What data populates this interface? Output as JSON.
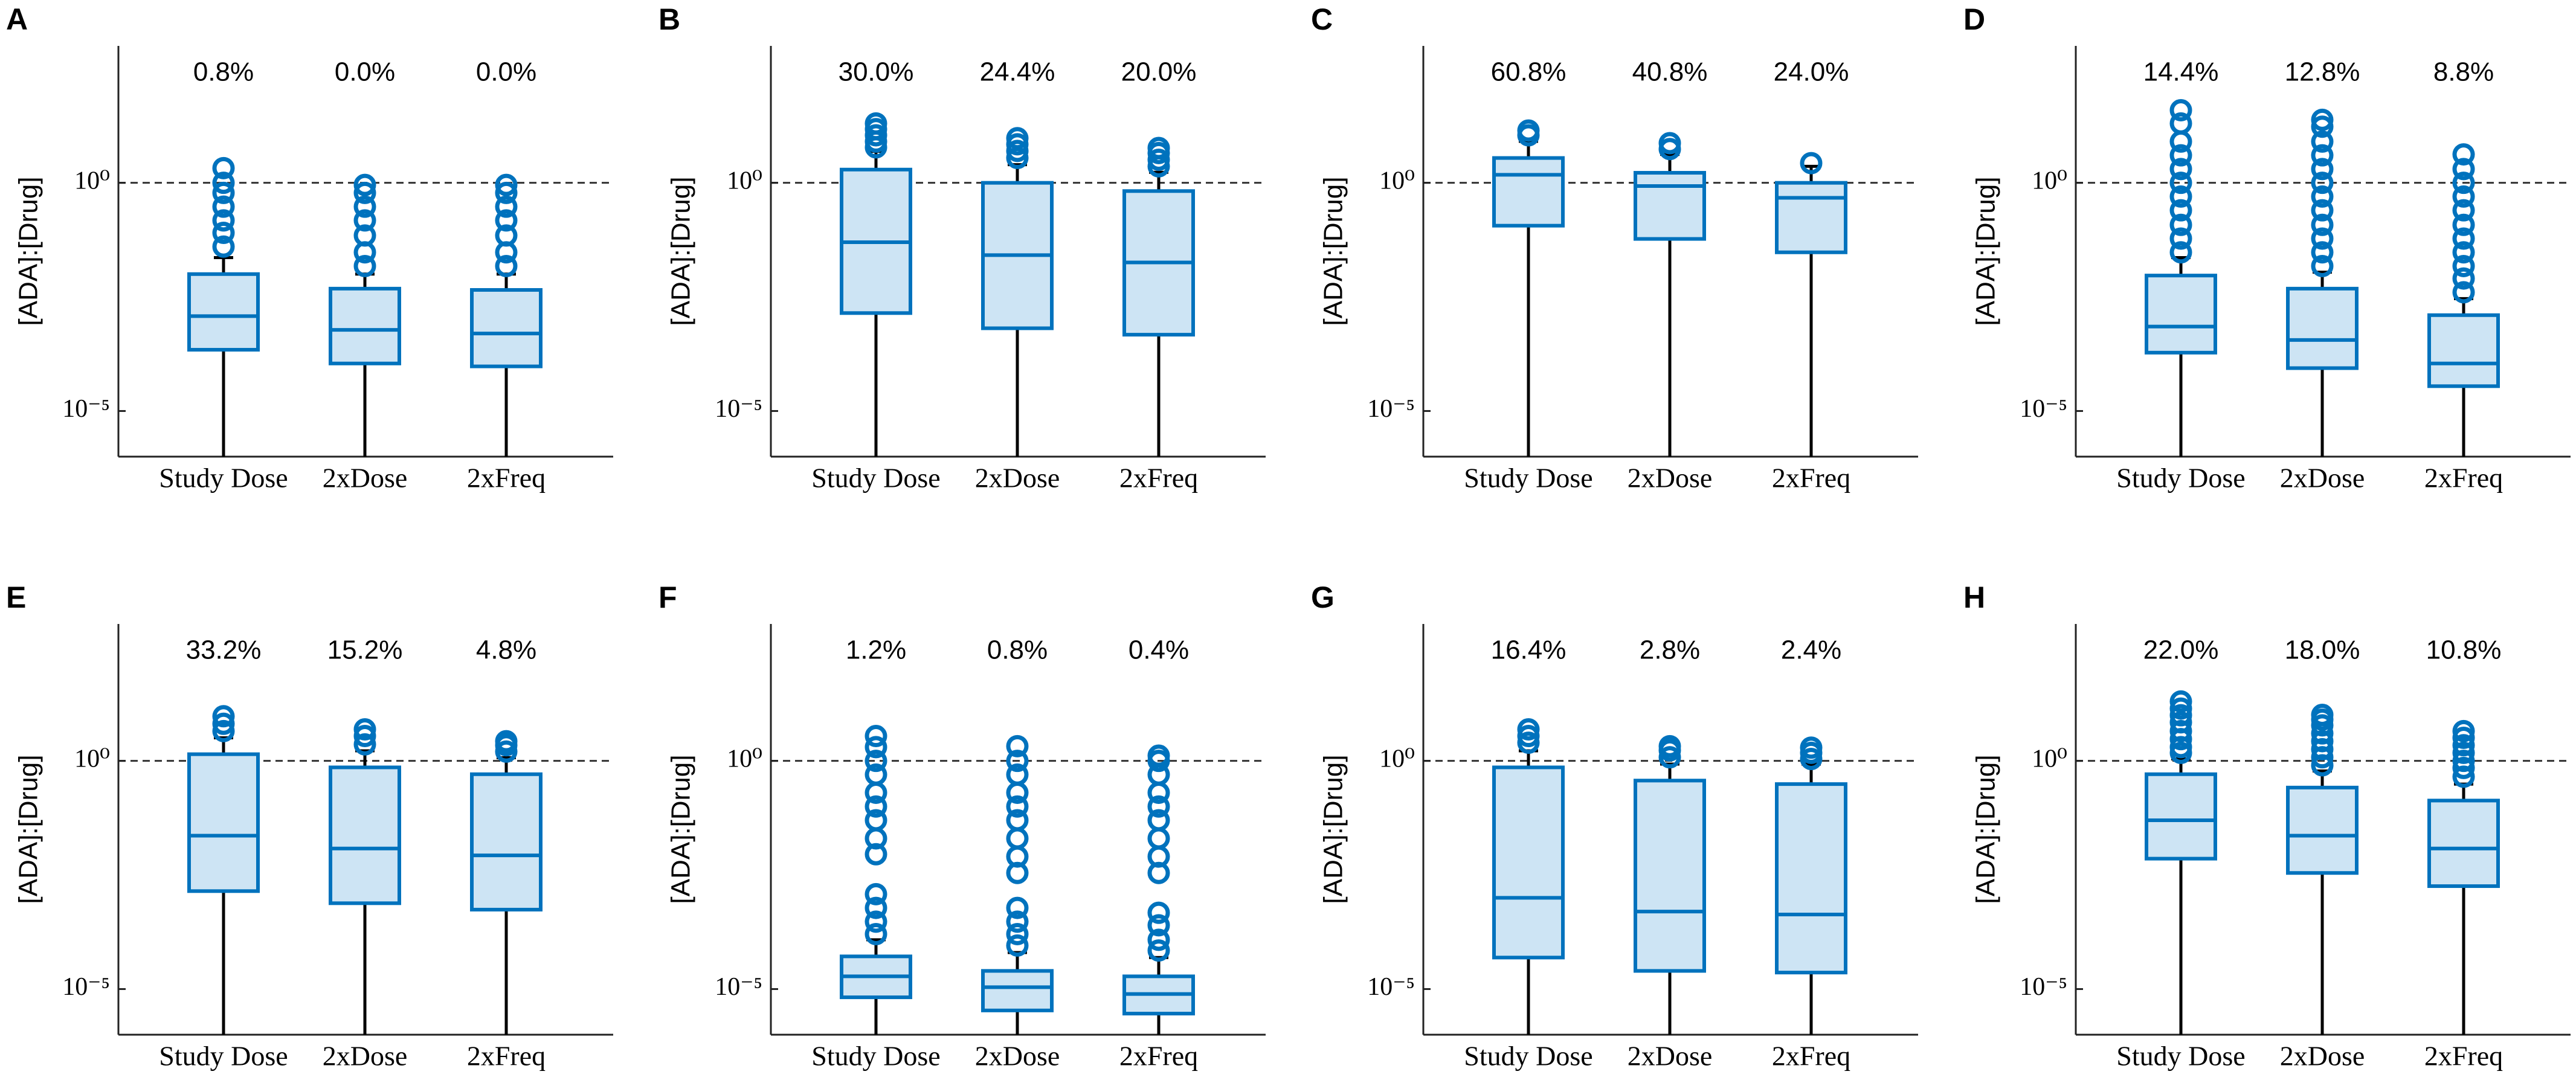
{
  "chart_data": [
    {
      "type": "box",
      "panel": "A",
      "y_label": "[ADA]:[Drug]",
      "log_scale": true,
      "ylim": [
        1e-06,
        1000
      ],
      "yticks": [
        {
          "value": 1e-05,
          "label": "10⁻⁵"
        },
        {
          "value": 1,
          "label": "10⁰"
        }
      ],
      "reference_line": 1,
      "color": "#0072bd",
      "fill": "#cde4f4",
      "whisker_color": "#000000",
      "categories": [
        "Study Dose",
        "2xDose",
        "2xFreq"
      ],
      "percent_labels": [
        "0.8%",
        "0.0%",
        "0.0%"
      ],
      "boxes": [
        {
          "whisker_low": 1e-06,
          "q1": 0.00022,
          "median": 0.0012,
          "q3": 0.01,
          "whisker_high": 0.023,
          "outliers": [
            0.04,
            0.08,
            0.15,
            0.3,
            0.6,
            1.0,
            2.1
          ]
        },
        {
          "whisker_low": 1e-06,
          "q1": 0.00011,
          "median": 0.0006,
          "q3": 0.0048,
          "whisker_high": 0.01,
          "outliers": [
            0.015,
            0.03,
            0.07,
            0.15,
            0.3,
            0.6,
            0.9
          ]
        },
        {
          "whisker_low": 1e-06,
          "q1": 9.5e-05,
          "median": 0.0005,
          "q3": 0.0045,
          "whisker_high": 0.01,
          "outliers": [
            0.015,
            0.03,
            0.07,
            0.15,
            0.3,
            0.6,
            0.9
          ]
        }
      ]
    },
    {
      "type": "box",
      "panel": "B",
      "y_label": "[ADA]:[Drug]",
      "log_scale": true,
      "ylim": [
        1e-06,
        1000
      ],
      "yticks": [
        {
          "value": 1e-05,
          "label": "10⁻⁵"
        },
        {
          "value": 1,
          "label": "10⁰"
        }
      ],
      "reference_line": 1,
      "color": "#0072bd",
      "fill": "#cde4f4",
      "whisker_color": "#000000",
      "categories": [
        "Study Dose",
        "2xDose",
        "2xFreq"
      ],
      "percent_labels": [
        "30.0%",
        "24.4%",
        "20.0%"
      ],
      "boxes": [
        {
          "whisker_low": 1e-06,
          "q1": 0.0014,
          "median": 0.05,
          "q3": 1.95,
          "whisker_high": 4.9,
          "outliers": [
            6,
            8,
            11,
            15,
            20
          ]
        },
        {
          "whisker_low": 1e-06,
          "q1": 0.00065,
          "median": 0.026,
          "q3": 1.0,
          "whisker_high": 2.5,
          "outliers": [
            3.5,
            5,
            7,
            9.5
          ]
        },
        {
          "whisker_low": 1e-06,
          "q1": 0.00047,
          "median": 0.018,
          "q3": 0.66,
          "whisker_high": 1.7,
          "outliers": [
            2.3,
            3.2,
            4.5,
            5.8
          ]
        }
      ]
    },
    {
      "type": "box",
      "panel": "C",
      "y_label": "[ADA]:[Drug]",
      "log_scale": true,
      "ylim": [
        1e-06,
        1000
      ],
      "yticks": [
        {
          "value": 1e-05,
          "label": "10⁻⁵"
        },
        {
          "value": 1,
          "label": "10⁰"
        }
      ],
      "reference_line": 1,
      "color": "#0072bd",
      "fill": "#cde4f4",
      "whisker_color": "#000000",
      "categories": [
        "Study Dose",
        "2xDose",
        "2xFreq"
      ],
      "percent_labels": [
        "60.8%",
        "40.8%",
        "24.0%"
      ],
      "boxes": [
        {
          "whisker_low": 1e-06,
          "q1": 0.115,
          "median": 1.5,
          "q3": 3.5,
          "whisker_high": 8.1,
          "outliers": [
            11,
            14
          ]
        },
        {
          "whisker_low": 1e-06,
          "q1": 0.059,
          "median": 0.85,
          "q3": 1.66,
          "whisker_high": 4.2,
          "outliers": [
            5.5,
            7.4
          ]
        },
        {
          "whisker_low": 1e-06,
          "q1": 0.03,
          "median": 0.47,
          "q3": 1.0,
          "whisker_high": 2.3,
          "outliers": [
            2.7
          ]
        }
      ]
    },
    {
      "type": "box",
      "panel": "D",
      "y_label": "[ADA]:[Drug]",
      "log_scale": true,
      "ylim": [
        1e-06,
        1000
      ],
      "yticks": [
        {
          "value": 1e-05,
          "label": "10⁻⁵"
        },
        {
          "value": 1,
          "label": "10⁰"
        }
      ],
      "reference_line": 1,
      "color": "#0072bd",
      "fill": "#cde4f4",
      "whisker_color": "#000000",
      "categories": [
        "Study Dose",
        "2xDose",
        "2xFreq"
      ],
      "percent_labels": [
        "14.4%",
        "12.8%",
        "8.8%"
      ],
      "boxes": [
        {
          "whisker_low": 1e-06,
          "q1": 0.00019,
          "median": 0.00071,
          "q3": 0.0093,
          "whisker_high": 0.023,
          "outliers": [
            0.03,
            0.06,
            0.12,
            0.25,
            0.5,
            1,
            2,
            4,
            8,
            20,
            39
          ]
        },
        {
          "whisker_low": 1e-06,
          "q1": 8.7e-05,
          "median": 0.00036,
          "q3": 0.0048,
          "whisker_high": 0.011,
          "outliers": [
            0.015,
            0.03,
            0.06,
            0.12,
            0.25,
            0.5,
            1,
            2,
            4,
            8,
            17,
            24
          ]
        },
        {
          "whisker_low": 1e-06,
          "q1": 3.5e-05,
          "median": 0.00011,
          "q3": 0.00126,
          "whisker_high": 0.0029,
          "outliers": [
            0.004,
            0.008,
            0.015,
            0.03,
            0.06,
            0.12,
            0.25,
            0.5,
            1,
            2,
            4.2
          ]
        }
      ]
    },
    {
      "type": "box",
      "panel": "E",
      "y_label": "[ADA]:[Drug]",
      "log_scale": true,
      "ylim": [
        1e-06,
        1000
      ],
      "yticks": [
        {
          "value": 1e-05,
          "label": "10⁻⁵"
        },
        {
          "value": 1,
          "label": "10⁰"
        }
      ],
      "reference_line": 1,
      "color": "#0072bd",
      "fill": "#cde4f4",
      "whisker_color": "#000000",
      "categories": [
        "Study Dose",
        "2xDose",
        "2xFreq"
      ],
      "percent_labels": [
        "33.2%",
        "15.2%",
        "4.8%"
      ],
      "boxes": [
        {
          "whisker_low": 1e-06,
          "q1": 0.0014,
          "median": 0.023,
          "q3": 1.4,
          "whisker_high": 3.2,
          "outliers": [
            4.5,
            6.5,
            9.5
          ]
        },
        {
          "whisker_low": 1e-06,
          "q1": 0.00076,
          "median": 0.012,
          "q3": 0.72,
          "whisker_high": 1.66,
          "outliers": [
            2.3,
            3.5,
            4.9
          ]
        },
        {
          "whisker_low": 1e-06,
          "q1": 0.00055,
          "median": 0.0085,
          "q3": 0.51,
          "whisker_high": 1.17,
          "outliers": [
            1.6,
            2.2,
            2.7
          ]
        }
      ]
    },
    {
      "type": "box",
      "panel": "F",
      "y_label": "[ADA]:[Drug]",
      "log_scale": true,
      "ylim": [
        1e-06,
        1000
      ],
      "yticks": [
        {
          "value": 1e-05,
          "label": "10⁻⁵"
        },
        {
          "value": 1,
          "label": "10⁰"
        }
      ],
      "reference_line": 1,
      "color": "#0072bd",
      "fill": "#cde4f4",
      "whisker_color": "#000000",
      "categories": [
        "Study Dose",
        "2xDose",
        "2xFreq"
      ],
      "percent_labels": [
        "1.2%",
        "0.8%",
        "0.4%"
      ],
      "boxes": [
        {
          "whisker_low": 1e-06,
          "q1": 6.6e-06,
          "median": 1.9e-05,
          "q3": 5.2e-05,
          "whisker_high": 0.00012,
          "outliers": [
            0.00016,
            0.0003,
            0.0006,
            0.0012,
            0.009,
            0.02,
            0.05,
            0.1,
            0.2,
            0.5,
            1,
            2,
            3.5
          ]
        },
        {
          "whisker_low": 1e-06,
          "q1": 3.4e-06,
          "median": 1.1e-05,
          "q3": 2.5e-05,
          "whisker_high": 6.3e-05,
          "outliers": [
            9e-05,
            0.00016,
            0.0003,
            0.0006,
            0.0035,
            0.008,
            0.02,
            0.05,
            0.1,
            0.2,
            0.5,
            1,
            2.1
          ]
        },
        {
          "whisker_low": 1e-06,
          "q1": 2.9e-06,
          "median": 7.8e-06,
          "q3": 1.9e-05,
          "whisker_high": 4.9e-05,
          "outliers": [
            7e-05,
            0.00012,
            0.00025,
            0.00047,
            0.0035,
            0.008,
            0.02,
            0.05,
            0.1,
            0.2,
            0.5,
            1,
            1.3
          ]
        }
      ]
    },
    {
      "type": "box",
      "panel": "G",
      "y_label": "[ADA]:[Drug]",
      "log_scale": true,
      "ylim": [
        1e-06,
        1000
      ],
      "yticks": [
        {
          "value": 1e-05,
          "label": "10⁻⁵"
        },
        {
          "value": 1,
          "label": "10⁰"
        }
      ],
      "reference_line": 1,
      "color": "#0072bd",
      "fill": "#cde4f4",
      "whisker_color": "#000000",
      "categories": [
        "Study Dose",
        "2xDose",
        "2xFreq"
      ],
      "percent_labels": [
        "16.4%",
        "2.8%",
        "2.4%"
      ],
      "boxes": [
        {
          "whisker_low": 1e-06,
          "q1": 4.9e-05,
          "median": 0.001,
          "q3": 0.72,
          "whisker_high": 1.66,
          "outliers": [
            2.5,
            3.5,
            4.9
          ]
        },
        {
          "whisker_low": 1e-06,
          "q1": 2.5e-05,
          "median": 0.0005,
          "q3": 0.37,
          "whisker_high": 0.85,
          "outliers": [
            1.2,
            1.7,
            2.1
          ]
        },
        {
          "whisker_low": 1e-06,
          "q1": 2.3e-05,
          "median": 0.00043,
          "q3": 0.31,
          "whisker_high": 0.85,
          "outliers": [
            1.1,
            1.5,
            1.95
          ]
        }
      ]
    },
    {
      "type": "box",
      "panel": "H",
      "y_label": "[ADA]:[Drug]",
      "log_scale": true,
      "ylim": [
        1e-06,
        1000
      ],
      "yticks": [
        {
          "value": 1e-05,
          "label": "10⁻⁵"
        },
        {
          "value": 1,
          "label": "10⁰"
        }
      ],
      "reference_line": 1,
      "color": "#0072bd",
      "fill": "#cde4f4",
      "whisker_color": "#000000",
      "categories": [
        "Study Dose",
        "2xDose",
        "2xFreq"
      ],
      "percent_labels": [
        "22.0%",
        "18.0%",
        "10.8%"
      ],
      "boxes": [
        {
          "whisker_low": 1e-06,
          "q1": 0.0072,
          "median": 0.05,
          "q3": 0.51,
          "whisker_high": 1.1,
          "outliers": [
            1.5,
            2,
            3,
            4.5,
            7,
            10,
            14,
            20
          ]
        },
        {
          "whisker_low": 1e-06,
          "q1": 0.0035,
          "median": 0.023,
          "q3": 0.26,
          "whisker_high": 0.6,
          "outliers": [
            0.8,
            1.2,
            1.8,
            2.7,
            4,
            6,
            8,
            10.2
          ]
        },
        {
          "whisker_low": 1e-06,
          "q1": 0.0018,
          "median": 0.012,
          "q3": 0.135,
          "whisker_high": 0.31,
          "outliers": [
            0.45,
            0.7,
            1,
            1.5,
            2.2,
            3.2,
            4.5
          ]
        }
      ]
    }
  ]
}
